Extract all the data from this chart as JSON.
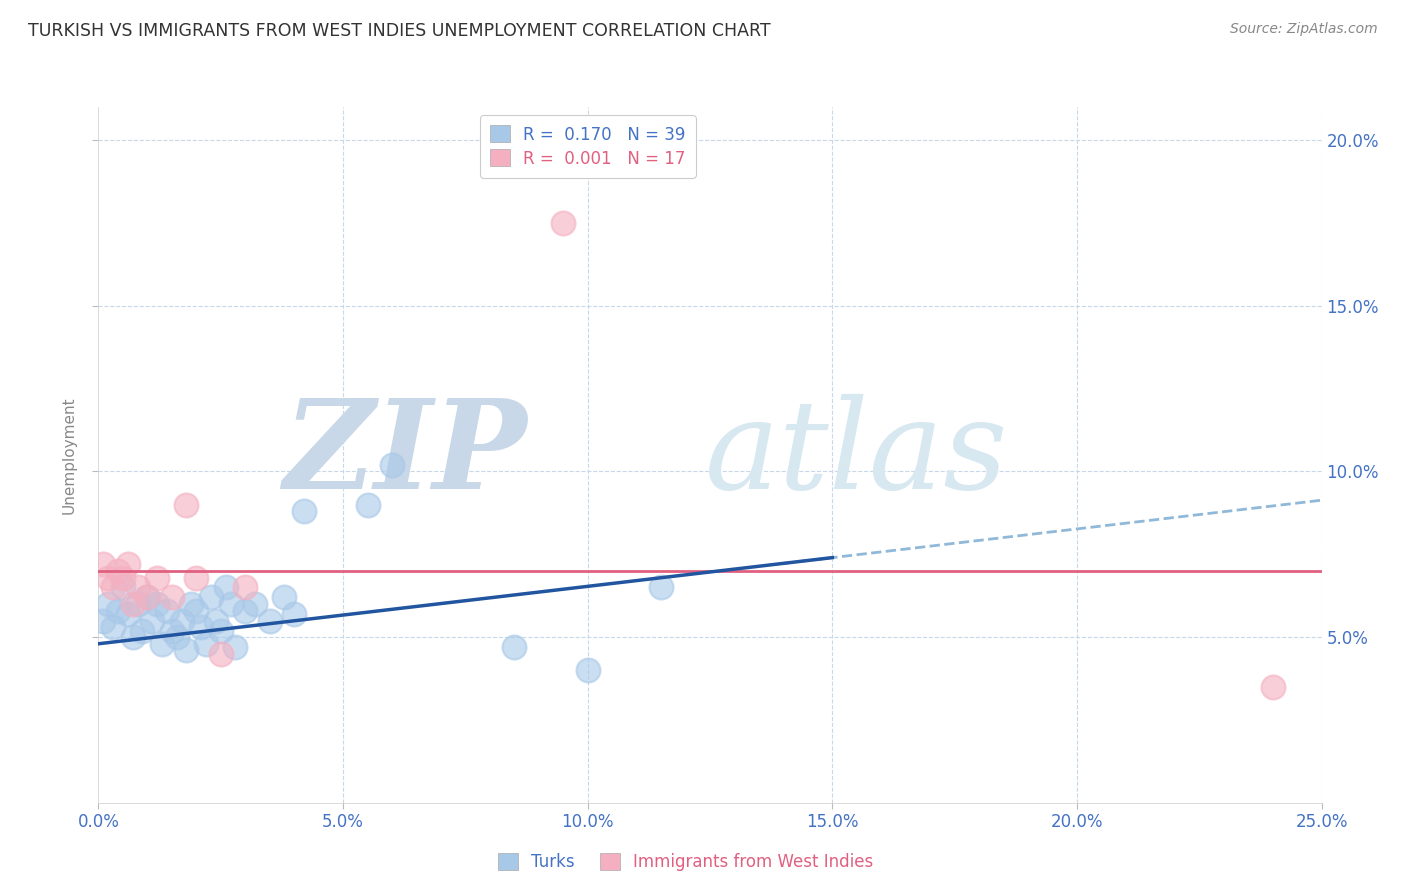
{
  "title": "TURKISH VS IMMIGRANTS FROM WEST INDIES UNEMPLOYMENT CORRELATION CHART",
  "source": "Source: ZipAtlas.com",
  "ylabel": "Unemployment",
  "xlim": [
    0.0,
    0.25
  ],
  "ylim": [
    0.0,
    0.21
  ],
  "xticks": [
    0.0,
    0.05,
    0.1,
    0.15,
    0.2,
    0.25
  ],
  "xtick_labels": [
    "0.0%",
    "5.0%",
    "10.0%",
    "15.0%",
    "20.0%",
    "25.0%"
  ],
  "ytick_labels_right": [
    "5.0%",
    "10.0%",
    "15.0%",
    "20.0%"
  ],
  "yticks_right": [
    0.05,
    0.1,
    0.15,
    0.2
  ],
  "turks_x": [
    0.001,
    0.002,
    0.003,
    0.004,
    0.005,
    0.006,
    0.007,
    0.008,
    0.009,
    0.01,
    0.011,
    0.012,
    0.013,
    0.014,
    0.015,
    0.016,
    0.017,
    0.018,
    0.019,
    0.02,
    0.021,
    0.022,
    0.023,
    0.024,
    0.025,
    0.026,
    0.027,
    0.028,
    0.03,
    0.032,
    0.035,
    0.038,
    0.04,
    0.042,
    0.055,
    0.06,
    0.085,
    0.1,
    0.115
  ],
  "turks_y": [
    0.055,
    0.06,
    0.053,
    0.058,
    0.065,
    0.057,
    0.05,
    0.06,
    0.052,
    0.062,
    0.055,
    0.06,
    0.048,
    0.058,
    0.052,
    0.05,
    0.055,
    0.046,
    0.06,
    0.058,
    0.053,
    0.048,
    0.062,
    0.055,
    0.052,
    0.065,
    0.06,
    0.047,
    0.058,
    0.06,
    0.055,
    0.062,
    0.057,
    0.088,
    0.09,
    0.102,
    0.047,
    0.04,
    0.065
  ],
  "west_indies_x": [
    0.001,
    0.002,
    0.003,
    0.004,
    0.005,
    0.006,
    0.007,
    0.008,
    0.01,
    0.012,
    0.015,
    0.018,
    0.02,
    0.025,
    0.03,
    0.095,
    0.24
  ],
  "west_indies_y": [
    0.072,
    0.068,
    0.065,
    0.07,
    0.068,
    0.072,
    0.06,
    0.065,
    0.062,
    0.068,
    0.062,
    0.09,
    0.068,
    0.045,
    0.065,
    0.175,
    0.035
  ],
  "blue_color": "#a8c8e8",
  "pink_color": "#f4b0c0",
  "blue_line_color": "#2255a0",
  "pink_line_color": "#e06080",
  "blue_dashed_color": "#90b8d8",
  "grid_color": "#c8d8e8",
  "background_color": "#ffffff",
  "watermark_zip": "ZIP",
  "watermark_atlas": "atlas",
  "watermark_color": "#dce8f0"
}
